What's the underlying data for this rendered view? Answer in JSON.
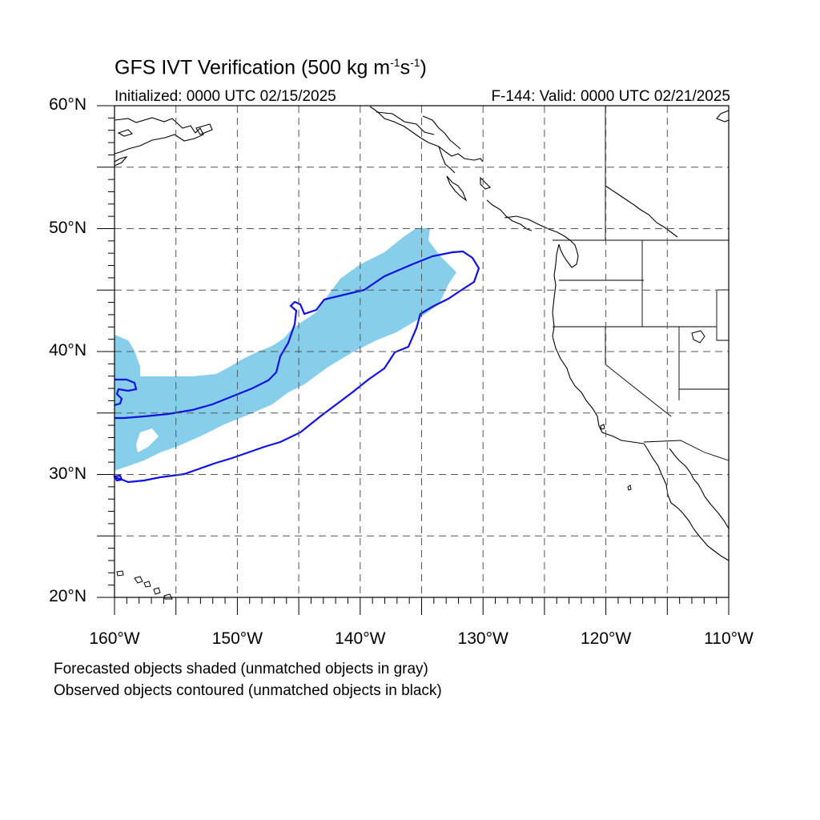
{
  "title": {
    "prefix": "GFS IVT Verification (500 kg m",
    "exp1": "-1",
    "mid": "s",
    "exp2": "-1",
    "suffix": ")"
  },
  "initialized": "Initialized: 0000 UTC 02/15/2025",
  "valid": "F-144: Valid: 0000 UTC 02/21/2025",
  "lat_labels": [
    "60°N",
    "50°N",
    "40°N",
    "30°N",
    "20°N"
  ],
  "lon_labels": [
    "160°W",
    "150°W",
    "140°W",
    "130°W",
    "120°W",
    "110°W"
  ],
  "legend_notes": [
    "Forecasted objects shaded (unmatched objects in gray)",
    "Observed objects contoured (unmatched objects in black)"
  ],
  "colors": {
    "forecast_fill": "#87ceeb",
    "observed_contour": "#1010e0",
    "coastline": "#000000",
    "grid": "#555555"
  },
  "map": {
    "lon_range": [
      -160,
      -110
    ],
    "lat_range": [
      20,
      60
    ],
    "grid_lon_step": 5,
    "grid_lat_step": 5,
    "grid_style": "dashed"
  }
}
